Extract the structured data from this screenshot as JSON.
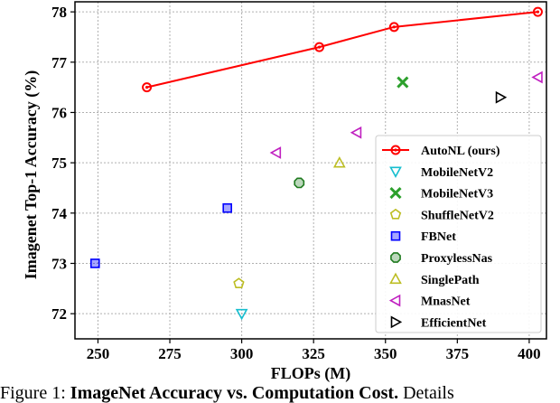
{
  "chart_data": {
    "type": "scatter",
    "xlabel": "FLOPs (M)",
    "ylabel": "Imagenet Top-1 Accuracy (%)",
    "xlim": [
      242,
      406
    ],
    "ylim": [
      71.5,
      78.2
    ],
    "xticks": [
      250,
      275,
      300,
      325,
      350,
      375,
      400
    ],
    "yticks": [
      72,
      73,
      74,
      75,
      76,
      77,
      78
    ],
    "grid": true,
    "legend_position": "lower-right",
    "series": [
      {
        "name": "AutoNL (ours)",
        "kind": "line",
        "color": "#ff0000",
        "marker": "circle",
        "x": [
          267,
          327,
          353,
          403
        ],
        "y": [
          76.5,
          77.3,
          77.7,
          78.0
        ]
      },
      {
        "name": "MobileNetV2",
        "color": "#17becf",
        "marker": "triangle-down",
        "x": [
          300
        ],
        "y": [
          72.0
        ]
      },
      {
        "name": "MobileNetV3",
        "color": "#2ca02c",
        "marker": "x-filled",
        "x": [
          356
        ],
        "y": [
          76.6
        ]
      },
      {
        "name": "ShuffleNetV2",
        "color": "#bcbd22",
        "marker": "pentagon",
        "x": [
          299
        ],
        "y": [
          72.6
        ]
      },
      {
        "name": "FBNet",
        "color": "#0000ff",
        "marker": "square",
        "x": [
          249,
          295
        ],
        "y": [
          73.0,
          74.1
        ]
      },
      {
        "name": "ProxylessNas",
        "color": "#1f7a1f",
        "marker": "octagon",
        "x": [
          320
        ],
        "y": [
          74.6
        ]
      },
      {
        "name": "SinglePath",
        "color": "#bcbd22",
        "marker": "triangle-up",
        "x": [
          334
        ],
        "y": [
          75.0
        ]
      },
      {
        "name": "MnasNet",
        "color": "#c020c0",
        "marker": "triangle-left",
        "x": [
          312,
          340,
          403
        ],
        "y": [
          75.2,
          75.6,
          76.7
        ]
      },
      {
        "name": "EfficientNet",
        "color": "#000000",
        "marker": "triangle-right",
        "x": [
          390
        ],
        "y": [
          76.3
        ]
      }
    ]
  },
  "caption": {
    "prefix": "Figure 1:",
    "title": "ImageNet Accuracy vs. Computation Cost.",
    "text": "Details"
  }
}
